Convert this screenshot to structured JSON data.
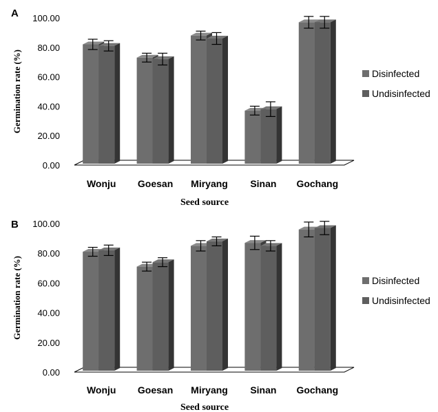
{
  "chart_data": [
    {
      "type": "bar",
      "panel_label": "A",
      "categories": [
        "Wonju",
        "Goesan",
        "Miryang",
        "Sinan",
        "Gochang"
      ],
      "series": [
        {
          "name": "Disinfected",
          "values": [
            82,
            73,
            88,
            37,
            97
          ],
          "errors": [
            3.5,
            3,
            3,
            3,
            4
          ]
        },
        {
          "name": "Undisinfected",
          "values": [
            81,
            72,
            86,
            38,
            97
          ],
          "errors": [
            3.5,
            4,
            4,
            5,
            4
          ]
        }
      ],
      "yticks": [
        "0.00",
        "20.00",
        "40.00",
        "60.00",
        "80.00",
        "100.00"
      ],
      "ylim": [
        0,
        100
      ],
      "xlabel": "Seed source",
      "ylabel": "Germination rate (%)",
      "legend": "right",
      "colors": {
        "disinfected": "#6e6e6e",
        "undisinfected": "#5e5e5e"
      }
    },
    {
      "type": "bar",
      "panel_label": "B",
      "categories": [
        "Wonju",
        "Goesan",
        "Miryang",
        "Sinan",
        "Gochang"
      ],
      "series": [
        {
          "name": "Disinfected",
          "values": [
            81,
            71,
            85,
            87,
            96
          ],
          "errors": [
            3,
            3,
            3.5,
            4.5,
            5
          ]
        },
        {
          "name": "Undisinfected",
          "values": [
            82,
            74,
            88,
            85,
            97
          ],
          "errors": [
            3.5,
            3,
            3,
            3.5,
            4.5
          ]
        }
      ],
      "yticks": [
        "0.00",
        "20.00",
        "40.00",
        "60.00",
        "80.00",
        "100.00"
      ],
      "ylim": [
        0,
        100
      ],
      "xlabel": "Seed source",
      "ylabel": "Germination rate (%)",
      "legend": "right",
      "colors": {
        "disinfected": "#6e6e6e",
        "undisinfected": "#5e5e5e"
      }
    }
  ]
}
